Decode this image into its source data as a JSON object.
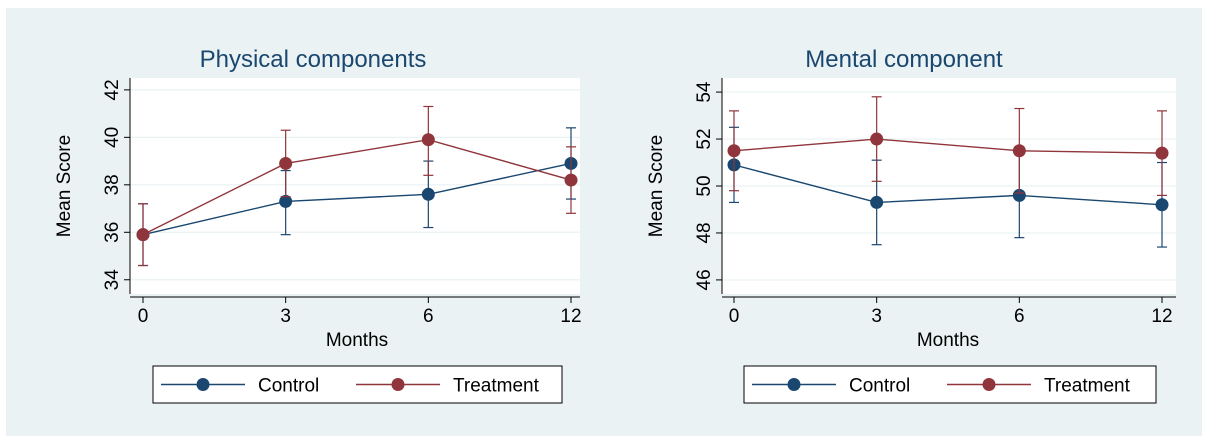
{
  "colors": {
    "control": "#1a476f",
    "treatment": "#90353b",
    "panel_bg": "#eaf2f3",
    "plot_bg": "#ffffff",
    "grid": "#eaf2f3",
    "axis": "#000000",
    "title": "#1a476f"
  },
  "chart_data": [
    {
      "type": "line",
      "title": "Physical components",
      "xlabel": "Months",
      "ylabel": "Mean Score",
      "x": [
        0,
        3,
        6,
        12
      ],
      "x_tick_labels": [
        "0",
        "3",
        "6",
        "12"
      ],
      "y_ticks": [
        34,
        36,
        38,
        40,
        42
      ],
      "y_tick_labels": [
        "34",
        "36",
        "38",
        "40",
        "42"
      ],
      "ylim": [
        33.4,
        42.5
      ],
      "grid": true,
      "legend_position": "bottom",
      "series": [
        {
          "name": "Control",
          "color": "#1a476f",
          "values": [
            35.9,
            37.3,
            37.6,
            38.9
          ],
          "err_low": [
            34.6,
            35.9,
            36.2,
            37.4
          ],
          "err_high": [
            37.2,
            38.6,
            39.0,
            40.4
          ]
        },
        {
          "name": "Treatment",
          "color": "#90353b",
          "values": [
            35.9,
            38.9,
            39.9,
            38.2
          ],
          "err_low": [
            34.6,
            37.5,
            38.4,
            36.8
          ],
          "err_high": [
            37.2,
            40.3,
            41.3,
            39.6
          ]
        }
      ]
    },
    {
      "type": "line",
      "title": "Mental component",
      "xlabel": "Months",
      "ylabel": "Mean Score",
      "x": [
        0,
        3,
        6,
        12
      ],
      "x_tick_labels": [
        "0",
        "3",
        "6",
        "12"
      ],
      "y_ticks": [
        46,
        48,
        50,
        52,
        54
      ],
      "y_tick_labels": [
        "46",
        "48",
        "50",
        "52",
        "54"
      ],
      "ylim": [
        45.4,
        54.6
      ],
      "grid": true,
      "legend_position": "bottom",
      "series": [
        {
          "name": "Control",
          "color": "#1a476f",
          "values": [
            50.9,
            49.3,
            49.6,
            49.2
          ],
          "err_low": [
            49.3,
            47.5,
            47.8,
            47.4
          ],
          "err_high": [
            52.5,
            51.1,
            51.4,
            51.0
          ]
        },
        {
          "name": "Treatment",
          "color": "#90353b",
          "values": [
            51.5,
            52.0,
            51.5,
            51.4
          ],
          "err_low": [
            49.8,
            50.2,
            49.7,
            49.6
          ],
          "err_high": [
            53.2,
            53.8,
            53.3,
            53.2
          ]
        }
      ]
    }
  ]
}
